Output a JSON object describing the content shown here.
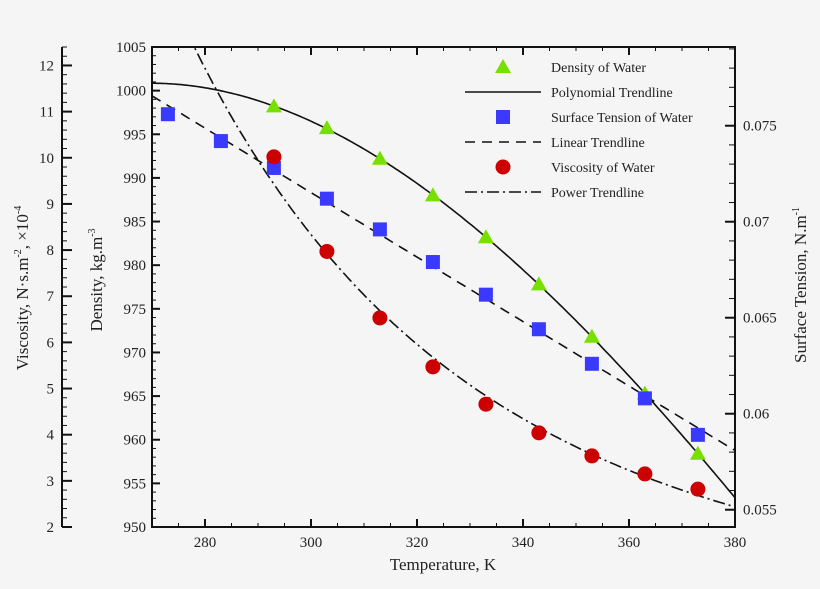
{
  "chart_data": {
    "type": "scatter",
    "xlabel": "Temperature, K",
    "xlim": [
      270,
      380
    ],
    "xticks": [
      280,
      300,
      320,
      340,
      360,
      380
    ],
    "axes": {
      "density": {
        "label": "Density, kg.m",
        "label_sup": "-3",
        "lim": [
          950,
          1005
        ],
        "ticks": [
          950,
          955,
          960,
          965,
          970,
          975,
          980,
          985,
          990,
          995,
          1000,
          1005
        ],
        "position": "left-inner"
      },
      "viscosity": {
        "label": "Viscosity, N·s.m",
        "label_sup": "-2",
        "label_suffix": ", ×10",
        "label_sup2": "-4",
        "lim": [
          2,
          12.4
        ],
        "ticks": [
          2,
          3,
          4,
          5,
          6,
          7,
          8,
          9,
          10,
          11,
          12
        ],
        "position": "left-outer"
      },
      "surface_tension": {
        "label": "Surface Tension, N.m",
        "label_sup": "-1",
        "lim": [
          0.0541,
          0.0791
        ],
        "ticks": [
          "0.055",
          "0.06",
          "0.065",
          "0.07",
          "0.075"
        ],
        "position": "right"
      }
    },
    "series": [
      {
        "name": "Density of Water",
        "axis": "density",
        "marker": "triangle",
        "color": "#77e000",
        "x": [
          293,
          303,
          313,
          323,
          333,
          343,
          353,
          363,
          373
        ],
        "y": [
          998.2,
          995.7,
          992.2,
          988.0,
          983.2,
          977.8,
          971.8,
          965.3,
          958.4
        ]
      },
      {
        "name": "Polynomial Trendline",
        "axis": "density",
        "line": "solid",
        "fit": "polynomial",
        "of": 0,
        "color": "#111111"
      },
      {
        "name": "Surface Tension of Water",
        "axis": "surface_tension",
        "marker": "square",
        "color": "#3a3aff",
        "x": [
          273,
          283,
          293,
          303,
          313,
          323,
          333,
          343,
          353,
          363,
          373
        ],
        "y": [
          0.0756,
          0.0742,
          0.0728,
          0.0712,
          0.0696,
          0.0679,
          0.0662,
          0.0644,
          0.0626,
          0.0608,
          0.0589
        ]
      },
      {
        "name": "Linear Trendline",
        "axis": "surface_tension",
        "line": "dashed",
        "fit": "linear",
        "of": 2,
        "color": "#111111"
      },
      {
        "name": "Viscosity of Water",
        "axis": "viscosity",
        "marker": "circle",
        "color": "#cc0000",
        "x": [
          293,
          303,
          313,
          323,
          333,
          343,
          353,
          363,
          373
        ],
        "y": [
          10.02,
          7.97,
          6.53,
          5.47,
          4.66,
          4.04,
          3.54,
          3.15,
          2.82
        ]
      },
      {
        "name": "Power Trendline",
        "axis": "viscosity",
        "line": "dashdot",
        "fit": "power",
        "of": 4,
        "color": "#111111"
      }
    ],
    "legend": "top-right"
  }
}
